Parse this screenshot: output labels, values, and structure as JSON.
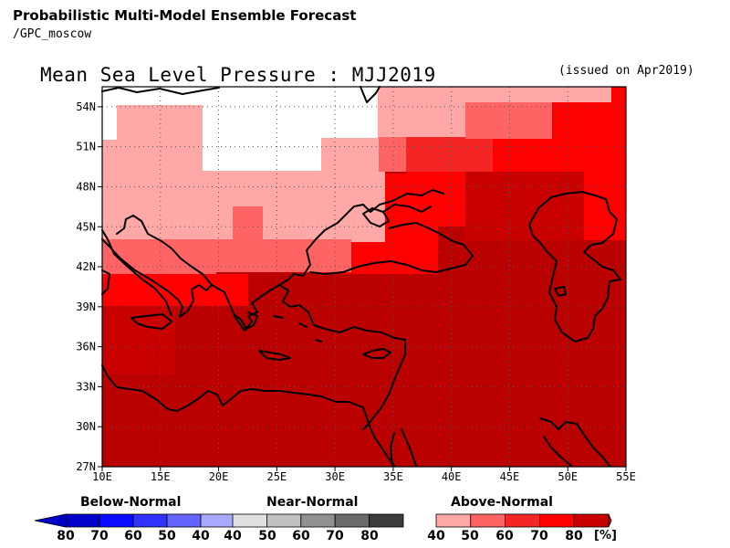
{
  "header": {
    "line1": "Probabilistic Multi-Model Ensemble Forecast",
    "line2": "/GPC_moscow"
  },
  "map": {
    "title": "Mean Sea Level Pressure : MJJ2019",
    "issued": "(issued on Apr2019)",
    "lon_labels": [
      "10E",
      "15E",
      "20E",
      "25E",
      "30E",
      "35E",
      "40E",
      "45E",
      "50E",
      "55E"
    ],
    "lat_labels": [
      "54N",
      "51N",
      "48N",
      "45N",
      "42N",
      "39N",
      "36N",
      "33N",
      "30N",
      "27N"
    ],
    "lon_range": [
      10,
      55
    ],
    "lat_range": [
      27,
      55.5
    ],
    "colors": {
      "white": "#ffffff",
      "a40": "#ffa8a8",
      "a50": "#ff6464",
      "a60": "#f42525",
      "a70": "#ff0000",
      "a80": "#c80000",
      "a90": "#bb0000"
    },
    "category_levels": {
      "a40": "40-50",
      "a50": "50-60",
      "a60": "60-70",
      "a70": "70-80",
      "a80": "80+",
      "a90": "80+"
    }
  },
  "legend": {
    "below": {
      "title": "Below-Normal",
      "labels": [
        "80",
        "70",
        "60",
        "50",
        "40"
      ],
      "colors": [
        "#0000c8",
        "#0a0aff",
        "#3232ff",
        "#6464ff",
        "#a8a8ff"
      ]
    },
    "near": {
      "title": "Near-Normal",
      "labels": [
        "40",
        "50",
        "60",
        "70",
        "80"
      ],
      "colors": [
        "#e0e0e0",
        "#c0c0c0",
        "#909090",
        "#6a6a6a",
        "#3c3c3c"
      ]
    },
    "above": {
      "title": "Above-Normal",
      "labels": [
        "40",
        "50",
        "60",
        "70",
        "80"
      ],
      "colors": [
        "#ffa8a8",
        "#ff6464",
        "#f42525",
        "#ff0000",
        "#c80000"
      ]
    },
    "unit": "[%]"
  }
}
